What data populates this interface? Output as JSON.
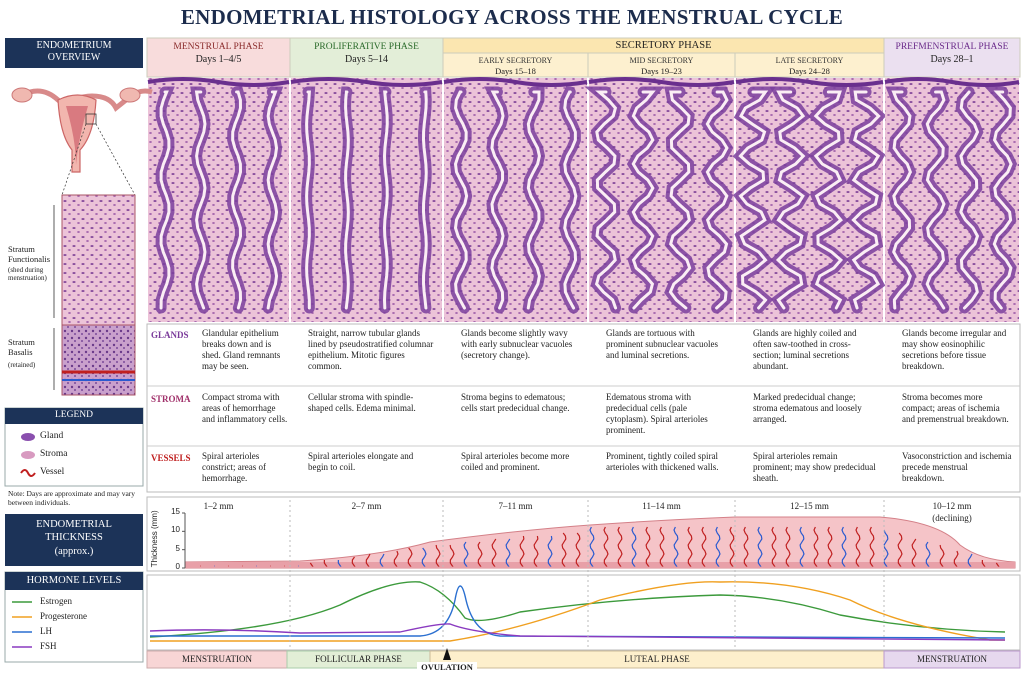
{
  "title": "ENDOMETRIAL HISTOLOGY ACROSS THE MENSTRUAL CYCLE",
  "overview": {
    "title": "ENDOMETRIUM OVERVIEW",
    "functionalis": {
      "name": "Stratum Functionalis",
      "note": "(shed during menstruation)"
    },
    "basalis": {
      "name": "Stratum Basalis",
      "note": "(retained)"
    }
  },
  "legend": {
    "title": "LEGEND",
    "items": [
      "Gland",
      "Stroma",
      "Vessel"
    ]
  },
  "note": "Note: Days are approximate and may vary between individuals.",
  "secretory_header": "SECRETORY PHASE",
  "row_labels": [
    "GLANDS",
    "STROMA",
    "VESSELS"
  ],
  "phases": [
    {
      "name": "MENSTRUAL PHASE",
      "days": "Days 1–4/5",
      "glands": "Glandular epithelium breaks down and is shed. Gland remnants may be seen.",
      "stroma": "Compact stroma with areas of hemorrhage and inflammatory cells.",
      "vessels": "Spiral arterioles constrict; areas of hemorrhage."
    },
    {
      "name": "PROLIFERATIVE PHASE",
      "days": "Days 5–14",
      "glands": "Straight, narrow tubular glands lined by pseudostratified columnar epithelium. Mitotic figures common.",
      "stroma": "Cellular stroma with spindle-shaped cells. Edema minimal.",
      "vessels": "Spiral arterioles elongate and begin to coil."
    },
    {
      "name": "EARLY SECRETORY",
      "days": "Days 15–18",
      "glands": "Glands become slightly wavy with early subnuclear vacuoles (secretory change).",
      "stroma": "Stroma begins to edematous; cells start predecidual change.",
      "vessels": "Spiral arterioles become more coiled and prominent."
    },
    {
      "name": "MID SECRETORY",
      "days": "Days 19–23",
      "glands": "Glands are tortuous with prominent subnuclear vacuoles and luminal secretions.",
      "stroma": "Edematous stroma with predecidual cells (pale cytoplasm). Spiral arterioles prominent.",
      "vessels": "Prominent, tightly coiled spiral arterioles with thickened walls."
    },
    {
      "name": "LATE SECRETORY",
      "days": "Days 24–28",
      "glands": "Glands are highly coiled and often saw-toothed in cross-section; luminal secretions abundant.",
      "stroma": "Marked predecidual change; stroma edematous and loosely arranged.",
      "vessels": "Spiral arterioles remain prominent; may show predecidual sheath."
    },
    {
      "name": "PREFMENSTRUAL PHASE",
      "days": "Days 28–1",
      "glands": "Glands become irregular and may show eosinophilic secretions before tissue breakdown.",
      "stroma": "Stroma becomes more compact; areas of ischemia and premenstrual breakdown.",
      "vessels": "Vasoconstriction and ischemia precede menstrual breakdown."
    }
  ],
  "thickness": {
    "title": "ENDOMETRIAL THICKNESS",
    "subtitle": "(approx.)",
    "axis_label": "Thickness (mm)",
    "ticks": [
      15,
      10,
      5,
      0
    ],
    "labels": [
      "1–2 mm",
      "2–7 mm",
      "7–11 mm",
      "11–14 mm",
      "12–15 mm",
      "10–12 mm"
    ],
    "declining": "(declining)"
  },
  "hormones": {
    "title": "HORMONE LEVELS",
    "items": [
      {
        "name": "Estrogen",
        "color": "#3c9a3c"
      },
      {
        "name": "Progesterone",
        "color": "#f0a020"
      },
      {
        "name": "LH",
        "color": "#2a6fd0"
      },
      {
        "name": "FSH",
        "color": "#8a3ac0"
      }
    ]
  },
  "cycle_bar": [
    "MENSTRUATION",
    "FOLLICULAR PHASE",
    "LUTEAL PHASE",
    "MENSTRUATION"
  ],
  "ovulation": "OVULATION"
}
